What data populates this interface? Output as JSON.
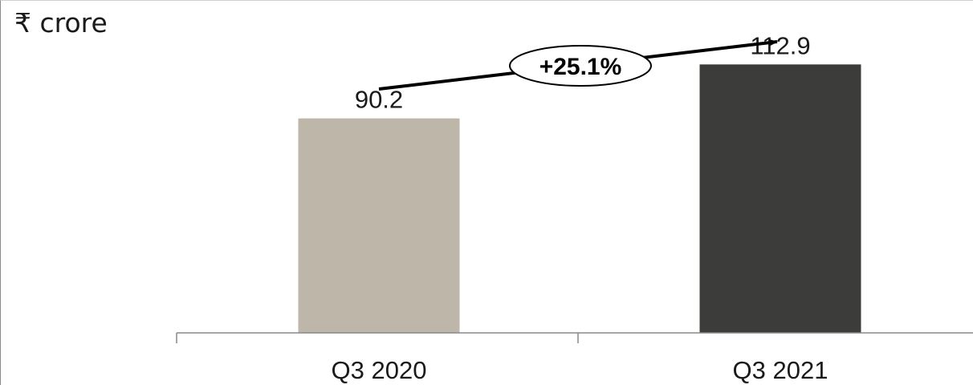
{
  "unit_label": "₹ crore",
  "growth_label": "+25.1%",
  "colors": {
    "bar_1": "#beb6a9",
    "bar_2": "#3c3c3a",
    "text": "#1a1a1a",
    "axis": "#888888"
  },
  "chart_data": {
    "type": "bar",
    "categories": [
      "Q3 2020",
      "Q3 2021"
    ],
    "values": [
      90.2,
      112.9
    ],
    "value_labels": [
      "90.2",
      "112.9"
    ],
    "title": "",
    "xlabel": "",
    "ylabel": "₹ crore",
    "ylim": [
      0,
      140
    ],
    "grid": false,
    "annotation": "+25.1%"
  }
}
